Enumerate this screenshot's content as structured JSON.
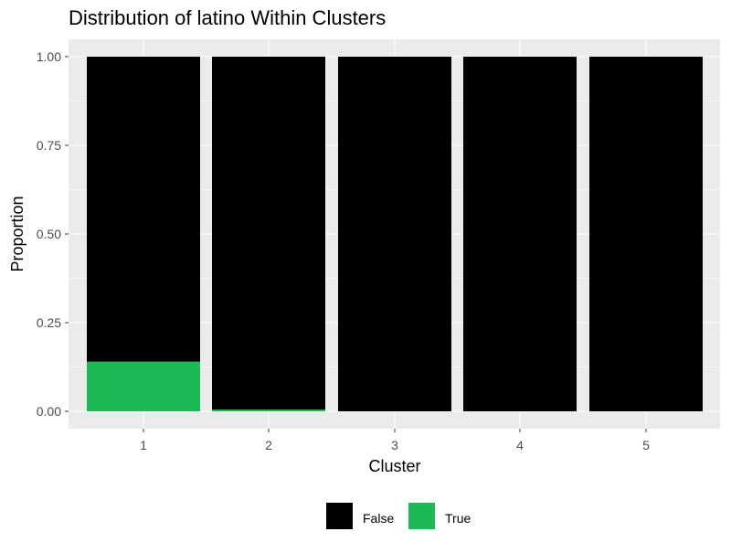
{
  "chart_data": {
    "type": "bar",
    "stacked": true,
    "title": "Distribution of latino Within Clusters",
    "xlabel": "Cluster",
    "ylabel": "Proportion",
    "categories": [
      "1",
      "2",
      "3",
      "4",
      "5"
    ],
    "ylim": [
      0,
      1
    ],
    "yticks": [
      "0.00",
      "0.25",
      "0.50",
      "0.75",
      "1.00"
    ],
    "series": [
      {
        "name": "True",
        "color": "#1DB954",
        "values": [
          0.14,
          0.005,
          0,
          0,
          0
        ]
      },
      {
        "name": "False",
        "color": "#000000",
        "values": [
          0.86,
          0.995,
          1,
          1,
          1
        ]
      }
    ],
    "legend": {
      "position": "bottom",
      "order": [
        "False",
        "True"
      ]
    },
    "panel_background": "#EBEBEB",
    "grid": true
  }
}
